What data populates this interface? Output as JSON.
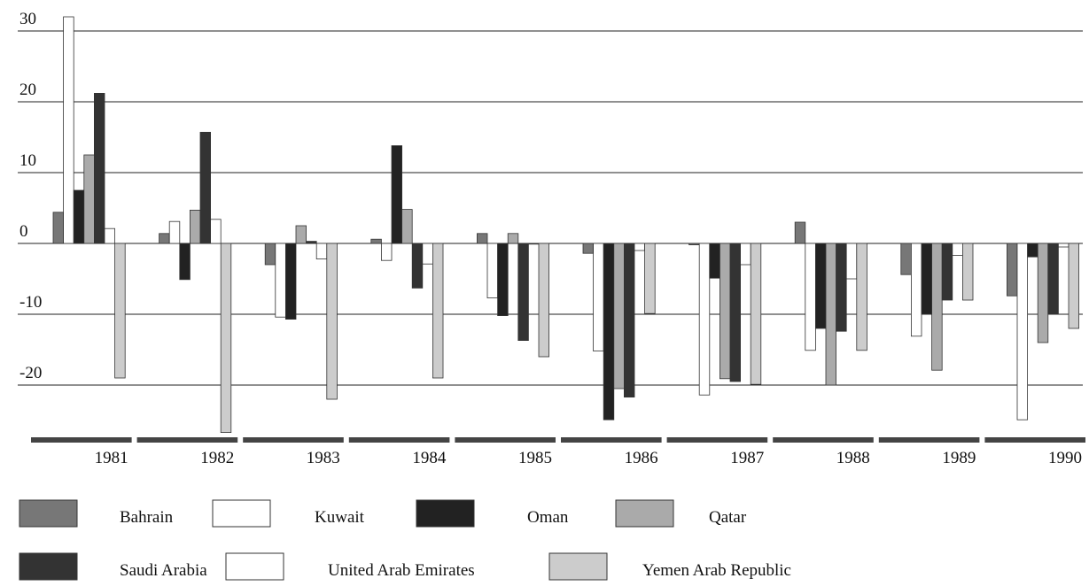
{
  "chart_data": {
    "type": "bar",
    "categories": [
      "1981",
      "1982",
      "1983",
      "1984",
      "1985",
      "1986",
      "1987",
      "1988",
      "1989",
      "1990"
    ],
    "series": [
      {
        "name": "Bahrain",
        "color": "#777777",
        "values": [
          4.4,
          1.4,
          -3,
          0.6,
          1.4,
          -1.4,
          -0.2,
          3,
          -4.4,
          -7.4
        ]
      },
      {
        "name": "Kuwait",
        "color": "#ffffff",
        "values": [
          32,
          3.1,
          -10.4,
          -2.4,
          -7.7,
          -15.2,
          -21.4,
          -15.1,
          -13.1,
          -24.9
        ]
      },
      {
        "name": "Oman",
        "color": "#222222",
        "values": [
          7.5,
          -5.1,
          -10.7,
          13.8,
          -10.2,
          -24.9,
          -4.9,
          -12,
          -10,
          -1.9
        ]
      },
      {
        "name": "Qatar",
        "color": "#aaaaaa",
        "values": [
          12.5,
          4.7,
          2.5,
          4.8,
          1.4,
          -20.5,
          -19.1,
          -20,
          -17.9,
          -14
        ]
      },
      {
        "name": "Saudi Arabia",
        "color": "#333333",
        "values": [
          21.2,
          15.7,
          0.3,
          -6.3,
          -13.7,
          -21.7,
          -19.5,
          -12.4,
          -8,
          -10
        ]
      },
      {
        "name": "United Arab Emirates",
        "color": "#ffffff",
        "values": [
          2.1,
          3.4,
          -2.2,
          -2.9,
          -0.1,
          -1,
          -3,
          -5,
          -1.7,
          -0.5
        ]
      },
      {
        "name": "Yemen Arab Republic",
        "color": "#cccccc",
        "values": [
          -19,
          -26.7,
          -22,
          -19,
          -16,
          -9.9,
          -19.9,
          -15.1,
          -8,
          -12
        ]
      }
    ],
    "ylim": [
      -28,
      32
    ],
    "yticks": [
      30,
      20,
      10,
      0,
      -10,
      -20
    ],
    "grid": true
  }
}
